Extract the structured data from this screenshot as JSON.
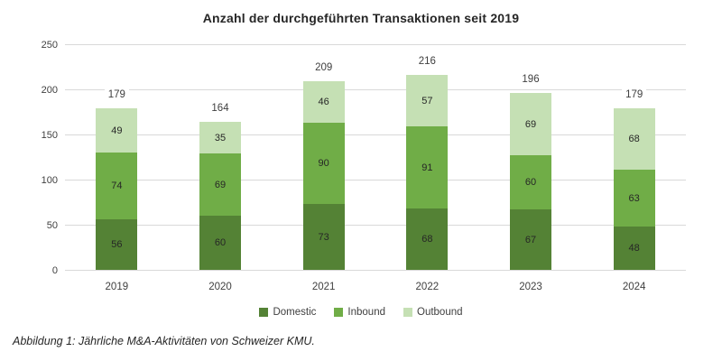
{
  "title": "Anzahl der durchgeführten Transaktionen seit 2019",
  "caption": "Abbildung 1: Jährliche M&A-Aktivitäten von Schweizer KMU.",
  "legend": {
    "position": "bottom"
  },
  "chart_data": {
    "type": "bar",
    "stacked": true,
    "title": "Anzahl der durchgeführten Transaktionen seit 2019",
    "xlabel": "",
    "ylabel": "",
    "categories": [
      "2019",
      "2020",
      "2021",
      "2022",
      "2023",
      "2024"
    ],
    "series": [
      {
        "name": "Domestic",
        "color": "#548235",
        "values": [
          56,
          60,
          73,
          68,
          67,
          48
        ]
      },
      {
        "name": "Inbound",
        "color": "#70AD47",
        "values": [
          74,
          69,
          90,
          91,
          60,
          63
        ]
      },
      {
        "name": "Outbound",
        "color": "#C5E0B4",
        "values": [
          49,
          35,
          46,
          57,
          69,
          68
        ]
      }
    ],
    "totals": [
      179,
      164,
      209,
      216,
      196,
      179
    ],
    "y_ticks": [
      0,
      50,
      100,
      150,
      200,
      250
    ],
    "ylim": [
      0,
      250
    ],
    "grid": true,
    "legend_position": "bottom"
  },
  "colors": {
    "gridline": "#D9D9D9",
    "axis_text": "#404040",
    "title_text": "#262626",
    "segment_label_text": "#262626",
    "background": "#FFFFFF"
  }
}
